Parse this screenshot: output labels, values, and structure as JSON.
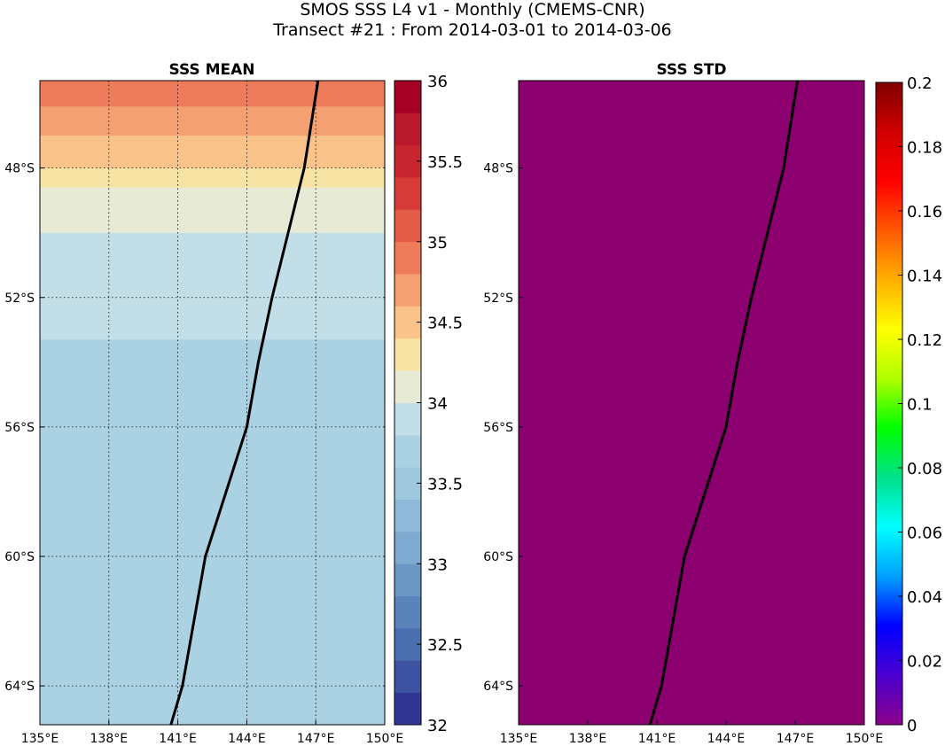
{
  "figure": {
    "title_line1": "SMOS SSS L4 v1 - Monthly (CMEMS-CNR)",
    "title_line2": "Transect #21 : From 2014-03-01 to 2014-03-06"
  },
  "chart_data": [
    {
      "type": "heatmap",
      "title": "SSS MEAN",
      "xlim": [
        135,
        150
      ],
      "ylim": [
        -65.2,
        -45.3
      ],
      "x_ticks": [
        135,
        138,
        141,
        144,
        147,
        150
      ],
      "x_tick_labels": [
        "135°E",
        "138°E",
        "141°E",
        "144°E",
        "147°E",
        "150°E"
      ],
      "y_ticks": [
        -48,
        -52,
        -56,
        -60,
        -64
      ],
      "y_tick_labels": [
        "48°S",
        "52°S",
        "56°S",
        "60°S",
        "64°S"
      ],
      "grid": true,
      "colorbar": {
        "range": [
          32,
          36
        ],
        "ticks": [
          32,
          32.5,
          33,
          33.5,
          34,
          34.5,
          35,
          35.5,
          36
        ],
        "tick_labels": [
          "32",
          "32.5",
          "33",
          "33.5",
          "34",
          "34.5",
          "35",
          "35.5",
          "36"
        ],
        "levels": 20,
        "colormap": "RdYlBu_r",
        "colors": [
          "#313695",
          "#3d52a1",
          "#4a6fae",
          "#5a83ba",
          "#6b97c5",
          "#7ea9d0",
          "#8fb9d9",
          "#9fc8dd",
          "#abd2e3",
          "#c2dfe8",
          "#e7ebd5",
          "#f7e3a3",
          "#f9c38a",
          "#f5a072",
          "#ee7c5b",
          "#e45c48",
          "#d73b37",
          "#c72630",
          "#b81a2c",
          "#a50026"
        ]
      },
      "field_bands": [
        {
          "lat_north": -45.3,
          "lat_south": -46.1,
          "value": 34.9
        },
        {
          "lat_north": -46.1,
          "lat_south": -47.0,
          "value": 34.7
        },
        {
          "lat_north": -47.0,
          "lat_south": -48.0,
          "value": 34.55
        },
        {
          "lat_north": -48.0,
          "lat_south": -48.6,
          "value": 34.3
        },
        {
          "lat_north": -48.6,
          "lat_south": -50.0,
          "value": 34.1
        },
        {
          "lat_north": -50.0,
          "lat_south": -53.3,
          "value": 33.95
        },
        {
          "lat_north": -53.3,
          "lat_south": -65.2,
          "value": 33.75
        }
      ],
      "transect": {
        "lon": [
          140.7,
          141.2,
          142.2,
          143.1,
          144.0,
          144.5,
          145.1,
          145.8,
          146.5,
          147.1
        ],
        "lat": [
          -65.2,
          -64.0,
          -60.0,
          -58.0,
          -56.0,
          -54.0,
          -52.0,
          -50.0,
          -48.0,
          -45.3
        ]
      }
    },
    {
      "type": "heatmap",
      "title": "SSS STD",
      "xlim": [
        135,
        150
      ],
      "ylim": [
        -65.2,
        -45.3
      ],
      "x_ticks": [
        135,
        138,
        141,
        144,
        147,
        150
      ],
      "x_tick_labels": [
        "135°E",
        "138°E",
        "141°E",
        "144°E",
        "147°E",
        "150°E"
      ],
      "y_ticks": [
        -48,
        -52,
        -56,
        -60,
        -64
      ],
      "y_tick_labels": [
        "48°S",
        "52°S",
        "56°S",
        "60°S",
        "64°S"
      ],
      "grid": false,
      "field_value": 0,
      "field_color": "#8b006e",
      "colorbar": {
        "range": [
          0,
          0.2
        ],
        "ticks": [
          0,
          0.02,
          0.04,
          0.06,
          0.08,
          0.1,
          0.12,
          0.14,
          0.16,
          0.18,
          0.2
        ],
        "tick_labels": [
          "0",
          "0.02",
          "0.04",
          "0.06",
          "0.08",
          "0.1",
          "0.12",
          "0.14",
          "0.16",
          "0.18",
          "0.2"
        ],
        "colormap": "nipy_spectral-like",
        "gradient_stops": [
          "#8b008b",
          "#4b00d0",
          "#0000ff",
          "#00a0ff",
          "#00ffff",
          "#00e08a",
          "#00ff00",
          "#b0ff00",
          "#ffff00",
          "#ffb000",
          "#ff5a00",
          "#ff0000",
          "#d00000",
          "#800000"
        ]
      },
      "transect": {
        "lon": [
          140.7,
          141.2,
          142.2,
          143.1,
          144.0,
          144.5,
          145.1,
          145.8,
          146.5,
          147.1
        ],
        "lat": [
          -65.2,
          -64.0,
          -60.0,
          -58.0,
          -56.0,
          -54.0,
          -52.0,
          -50.0,
          -48.0,
          -45.3
        ]
      }
    }
  ]
}
